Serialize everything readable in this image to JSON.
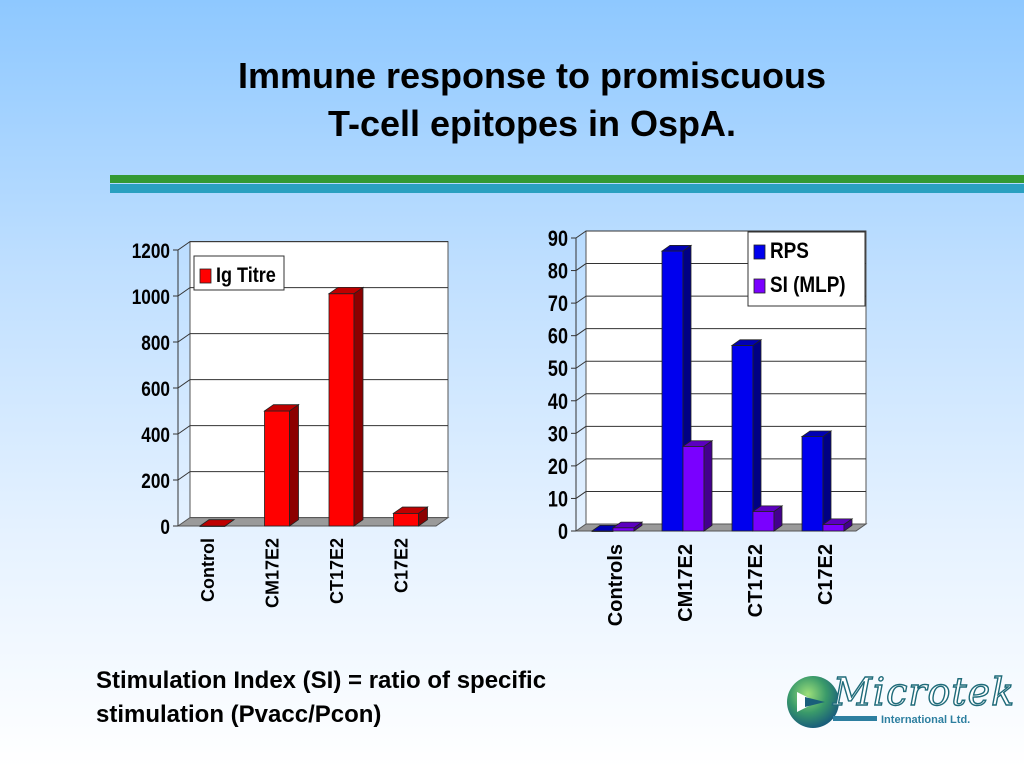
{
  "slide": {
    "title_line1": "Immune response to promiscuous",
    "title_line2": "T-cell epitopes in OspA.",
    "caption_line1": "Stimulation Index (SI) = ratio of specific",
    "caption_line2": "stimulation (Pvacc/Pcon)",
    "logo_name": "Microtek",
    "logo_sub": "International  Ltd."
  },
  "chart_data": [
    {
      "type": "bar",
      "categories": [
        "Control",
        "CM17E2",
        "CT17E2",
        "C17E2"
      ],
      "series": [
        {
          "name": "Ig Titre",
          "values": [
            0,
            500,
            1010,
            55
          ],
          "color": "#ff0000"
        }
      ],
      "ylim": [
        0,
        1200
      ],
      "yticks": [
        0,
        200,
        400,
        600,
        800,
        1000,
        1200
      ],
      "grid": true,
      "legend": "top-left"
    },
    {
      "type": "bar",
      "categories": [
        "Controls",
        "CM17E2",
        "CT17E2",
        "C17E2"
      ],
      "series": [
        {
          "name": "RPS",
          "values": [
            0,
            86,
            57,
            29
          ],
          "color": "#0000ee"
        },
        {
          "name": "SI (MLP)",
          "values": [
            1,
            26,
            6,
            2
          ],
          "color": "#7a00ff"
        }
      ],
      "ylim": [
        0,
        90
      ],
      "yticks": [
        0,
        10,
        20,
        30,
        40,
        50,
        60,
        70,
        80,
        90
      ],
      "grid": true,
      "legend": "top-right"
    }
  ]
}
